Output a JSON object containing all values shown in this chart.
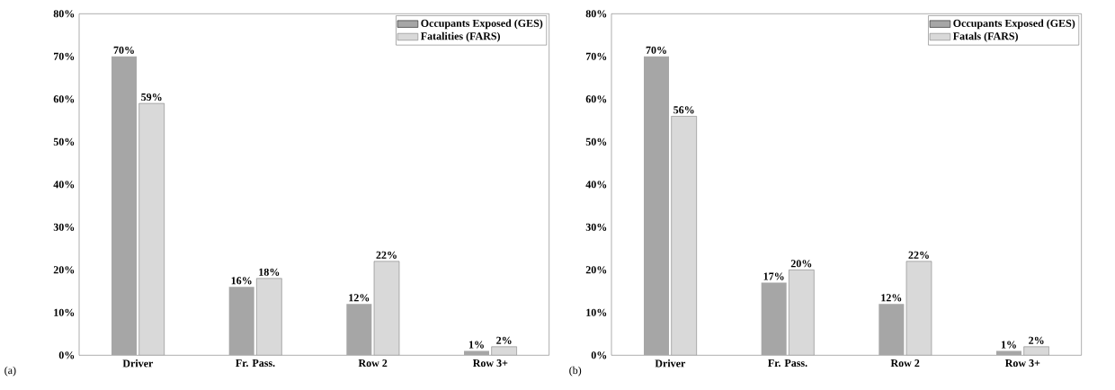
{
  "chart_data": [
    {
      "type": "bar",
      "categories": [
        "Driver",
        "Fr. Pass.",
        "Row 2",
        "Row 3+"
      ],
      "series": [
        {
          "name": "Occupants Exposed (GES)",
          "color": "#a6a6a6",
          "values": [
            70,
            16,
            12,
            1
          ],
          "value_labels": [
            "70%",
            "16%",
            "12%",
            "1%"
          ]
        },
        {
          "name": "Fatalities (FARS)",
          "color": "#d9d9d9",
          "values": [
            59,
            18,
            22,
            2
          ],
          "value_labels": [
            "59%",
            "18%",
            "22%",
            "2%"
          ]
        }
      ],
      "ylim": [
        0,
        80
      ],
      "yticks": [
        {
          "value": 0,
          "label": "0%"
        },
        {
          "value": 10,
          "label": "10%"
        },
        {
          "value": 20,
          "label": "20%"
        },
        {
          "value": 30,
          "label": "30%"
        },
        {
          "value": 40,
          "label": "40%"
        },
        {
          "value": 50,
          "label": "50%"
        },
        {
          "value": 60,
          "label": "60%"
        },
        {
          "value": 70,
          "label": "70%"
        },
        {
          "value": 80,
          "label": "80%"
        }
      ],
      "legend": "top right",
      "annotations": [
        "(a)"
      ]
    },
    {
      "type": "bar",
      "categories": [
        "Driver",
        "Fr. Pass.",
        "Row 2",
        "Row 3+"
      ],
      "series": [
        {
          "name": "Occupants Exposed (GES)",
          "color": "#a6a6a6",
          "values": [
            70,
            17,
            12,
            1
          ],
          "value_labels": [
            "70%",
            "17%",
            "12%",
            "1%"
          ]
        },
        {
          "name": "Fatals (FARS)",
          "color": "#d9d9d9",
          "values": [
            56,
            20,
            22,
            2
          ],
          "value_labels": [
            "56%",
            "20%",
            "22%",
            "2%"
          ]
        }
      ],
      "ylim": [
        0,
        80
      ],
      "yticks": [
        {
          "value": 0,
          "label": "0%"
        },
        {
          "value": 10,
          "label": "10%"
        },
        {
          "value": 20,
          "label": "20%"
        },
        {
          "value": 30,
          "label": "30%"
        },
        {
          "value": 40,
          "label": "40%"
        },
        {
          "value": 50,
          "label": "50%"
        },
        {
          "value": 60,
          "label": "60%"
        },
        {
          "value": 70,
          "label": "70%"
        },
        {
          "value": 80,
          "label": "80%"
        }
      ],
      "legend": "top right",
      "annotations": [
        "(b)"
      ]
    }
  ]
}
